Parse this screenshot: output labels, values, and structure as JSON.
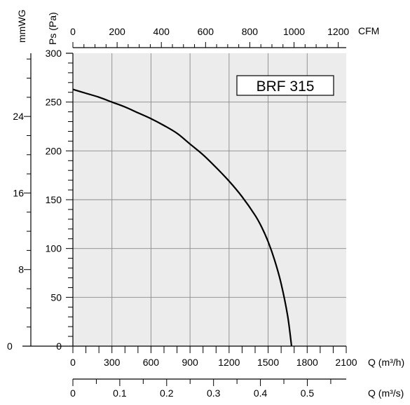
{
  "chart_data": {
    "type": "line",
    "model_label": "BRF 315",
    "y_primary": {
      "label": "Ps (Pa)",
      "range": [
        0,
        300
      ],
      "ticks": [
        "0",
        "50",
        "100",
        "150",
        "200",
        "250",
        "300"
      ],
      "minor_step": 10
    },
    "y_secondary": {
      "label": "mmWG",
      "range": [
        0,
        30.6
      ],
      "ticks": [
        "0",
        "8",
        "16",
        "24"
      ],
      "minor_step": 2
    },
    "x_top": {
      "label": "CFM",
      "range": [
        0,
        1236
      ],
      "ticks": [
        "0",
        "200",
        "400",
        "600",
        "800",
        "1000",
        "1200"
      ],
      "minor_step": 50
    },
    "x_bottom": {
      "label": "Q (m³/h)",
      "range": [
        0,
        2100
      ],
      "ticks": [
        "0",
        "300",
        "600",
        "900",
        "1200",
        "1500",
        "1800",
        "2100"
      ],
      "minor_step": 100
    },
    "x_bottom2": {
      "label": "Q (m³/s)",
      "range": [
        0,
        0.583
      ],
      "ticks": [
        "0",
        "0.1",
        "0.2",
        "0.3",
        "0.4",
        "0.5"
      ],
      "minor_step": 0.05
    },
    "grid": true,
    "series": [
      {
        "x": [
          0,
          100,
          200,
          300,
          400,
          500,
          600,
          700,
          800,
          900,
          1000,
          1100,
          1200,
          1300,
          1400,
          1450,
          1500,
          1550,
          1600,
          1650,
          1680
        ],
        "y": [
          263,
          259,
          255,
          250,
          245,
          239,
          233,
          226,
          218,
          207,
          196,
          183,
          169,
          153,
          134,
          122,
          107,
          88,
          64,
          31,
          0
        ]
      }
    ],
    "colors": {
      "plot_bg": "#ececec",
      "grid": "#8a8a8a",
      "curve": "#000000",
      "axis": "#000000"
    }
  }
}
